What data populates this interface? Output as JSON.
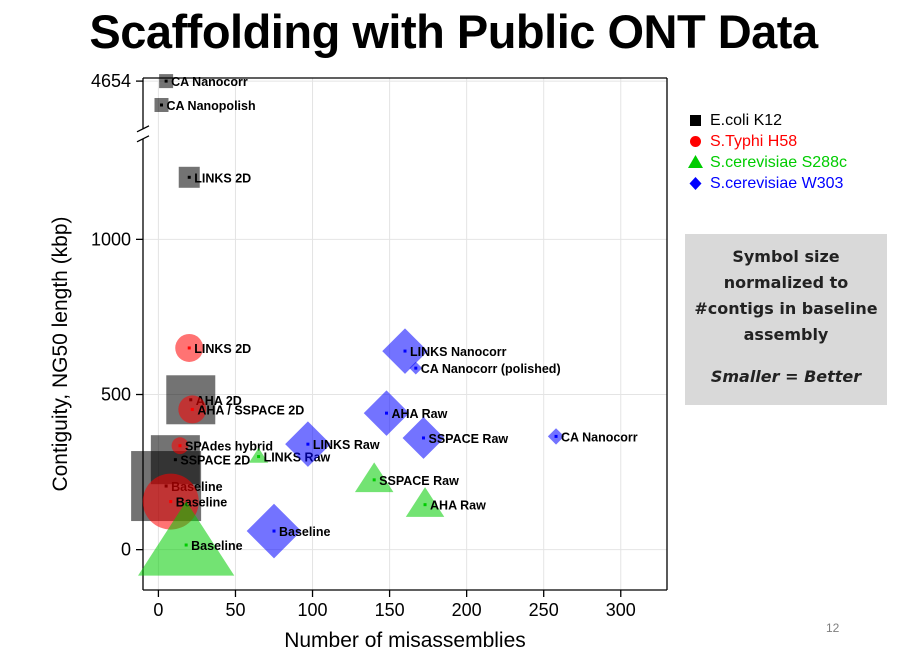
{
  "slide": {
    "title": "Scaffolding with Public ONT Data",
    "page_number": "12",
    "note": {
      "lines": [
        "Symbol size",
        "normalized to",
        "#contigs in baseline",
        "assembly"
      ],
      "emphasis": "Smaller = Better"
    }
  },
  "chart_data": {
    "type": "scatter",
    "xlabel": "Number of misassemblies",
    "ylabel": "Contiguity, NG50 length (kbp)",
    "xlim": [
      -10,
      330
    ],
    "ylim": [
      -130,
      1520
    ],
    "x_ticks": [
      0,
      50,
      100,
      150,
      200,
      250,
      300
    ],
    "y_ticks": [
      0,
      500,
      1000
    ],
    "y_break": {
      "at": 1340,
      "label": "4654",
      "top_value": 4654
    },
    "grid": true,
    "legend_position": "right",
    "series": [
      {
        "name": "E.coli K12",
        "shape": "square",
        "color": "#000000",
        "points": [
          {
            "label": "CA Nanocorr",
            "x": 5,
            "y": 4654,
            "size": 1
          },
          {
            "label": "CA Nanopolish",
            "x": 2,
            "y": 4500,
            "size": 1
          },
          {
            "label": "LINKS 2D",
            "x": 20,
            "y": 1200,
            "size": 1.5
          },
          {
            "label": "AHA 2D",
            "x": 21,
            "y": 483,
            "size": 3.5
          },
          {
            "label": "SSPACE 2D",
            "x": 11,
            "y": 290,
            "size": 3.5
          },
          {
            "label": "Baseline",
            "x": 5,
            "y": 205,
            "size": 5
          }
        ]
      },
      {
        "name": "S.Typhi H58",
        "shape": "circle",
        "color": "#ff0000",
        "points": [
          {
            "label": "LINKS 2D",
            "x": 20,
            "y": 650,
            "size": 2
          },
          {
            "label": "AHA / SSPACE 2D",
            "x": 22,
            "y": 452,
            "size": 2
          },
          {
            "label": "SPAdes hybrid",
            "x": 14,
            "y": 335,
            "size": 1.2
          },
          {
            "label": "Baseline",
            "x": 8,
            "y": 155,
            "size": 4
          }
        ]
      },
      {
        "name": "S.cerevisiae S288c",
        "shape": "triangle",
        "color": "#00cc00",
        "points": [
          {
            "label": "LINKS Raw",
            "x": 65,
            "y": 300,
            "size": 1
          },
          {
            "label": "SSPACE Raw",
            "x": 140,
            "y": 225,
            "size": 2
          },
          {
            "label": "AHA Raw",
            "x": 173,
            "y": 145,
            "size": 2
          },
          {
            "label": "Baseline",
            "x": 18,
            "y": 15,
            "size": 5
          }
        ]
      },
      {
        "name": "S.cerevisiae W303",
        "shape": "diamond",
        "color": "#0000ff",
        "points": [
          {
            "label": "LINKS Nanocorr",
            "x": 160,
            "y": 640,
            "size": 2.5
          },
          {
            "label": "CA Nanocorr (polished)",
            "x": 167,
            "y": 585,
            "size": 0.7
          },
          {
            "label": "AHA Raw",
            "x": 148,
            "y": 440,
            "size": 2.5
          },
          {
            "label": "SSPACE Raw",
            "x": 172,
            "y": 360,
            "size": 2.3
          },
          {
            "label": "LINKS Raw",
            "x": 97,
            "y": 340,
            "size": 2.5
          },
          {
            "label": "CA Nanocorr",
            "x": 258,
            "y": 365,
            "size": 0.9
          },
          {
            "label": "Baseline",
            "x": 75,
            "y": 60,
            "size": 3
          }
        ]
      }
    ]
  }
}
